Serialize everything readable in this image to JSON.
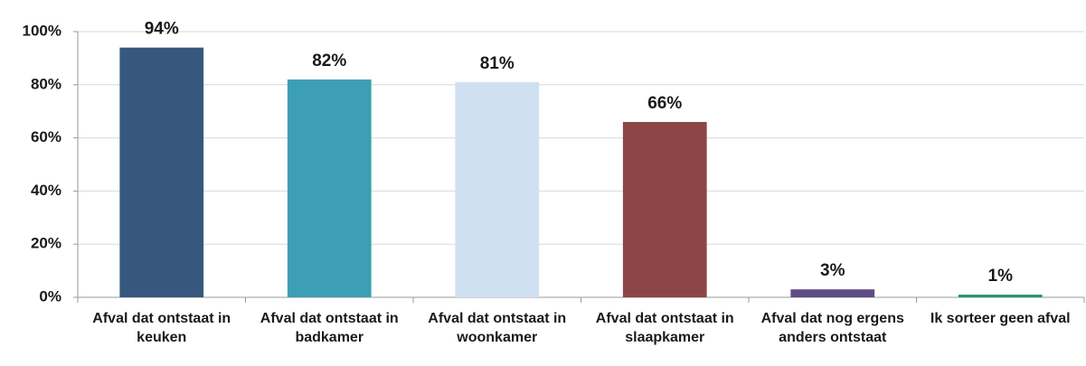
{
  "chart_data": {
    "type": "bar",
    "categories": [
      "Afval dat ontstaat in keuken",
      "Afval dat ontstaat in badkamer",
      "Afval dat ontstaat in woonkamer",
      "Afval dat ontstaat in slaapkamer",
      "Afval dat nog ergens anders ontstaat",
      "Ik sorteer geen afval"
    ],
    "values": [
      94,
      82,
      81,
      66,
      3,
      1
    ],
    "value_labels": [
      "94%",
      "82%",
      "81%",
      "66%",
      "3%",
      "1%"
    ],
    "colors": [
      "#36587e",
      "#3d9fb3",
      "#cfe0f2",
      "#8c4547",
      "#5f4c86",
      "#23946a"
    ],
    "ylim": [
      0,
      100
    ],
    "yticks": [
      {
        "value": 0,
        "label": "0%"
      },
      {
        "value": 20,
        "label": "20%"
      },
      {
        "value": 40,
        "label": "40%"
      },
      {
        "value": 60,
        "label": "60%"
      },
      {
        "value": 80,
        "label": "80%"
      },
      {
        "value": 100,
        "label": "100%"
      }
    ],
    "grid": true
  }
}
